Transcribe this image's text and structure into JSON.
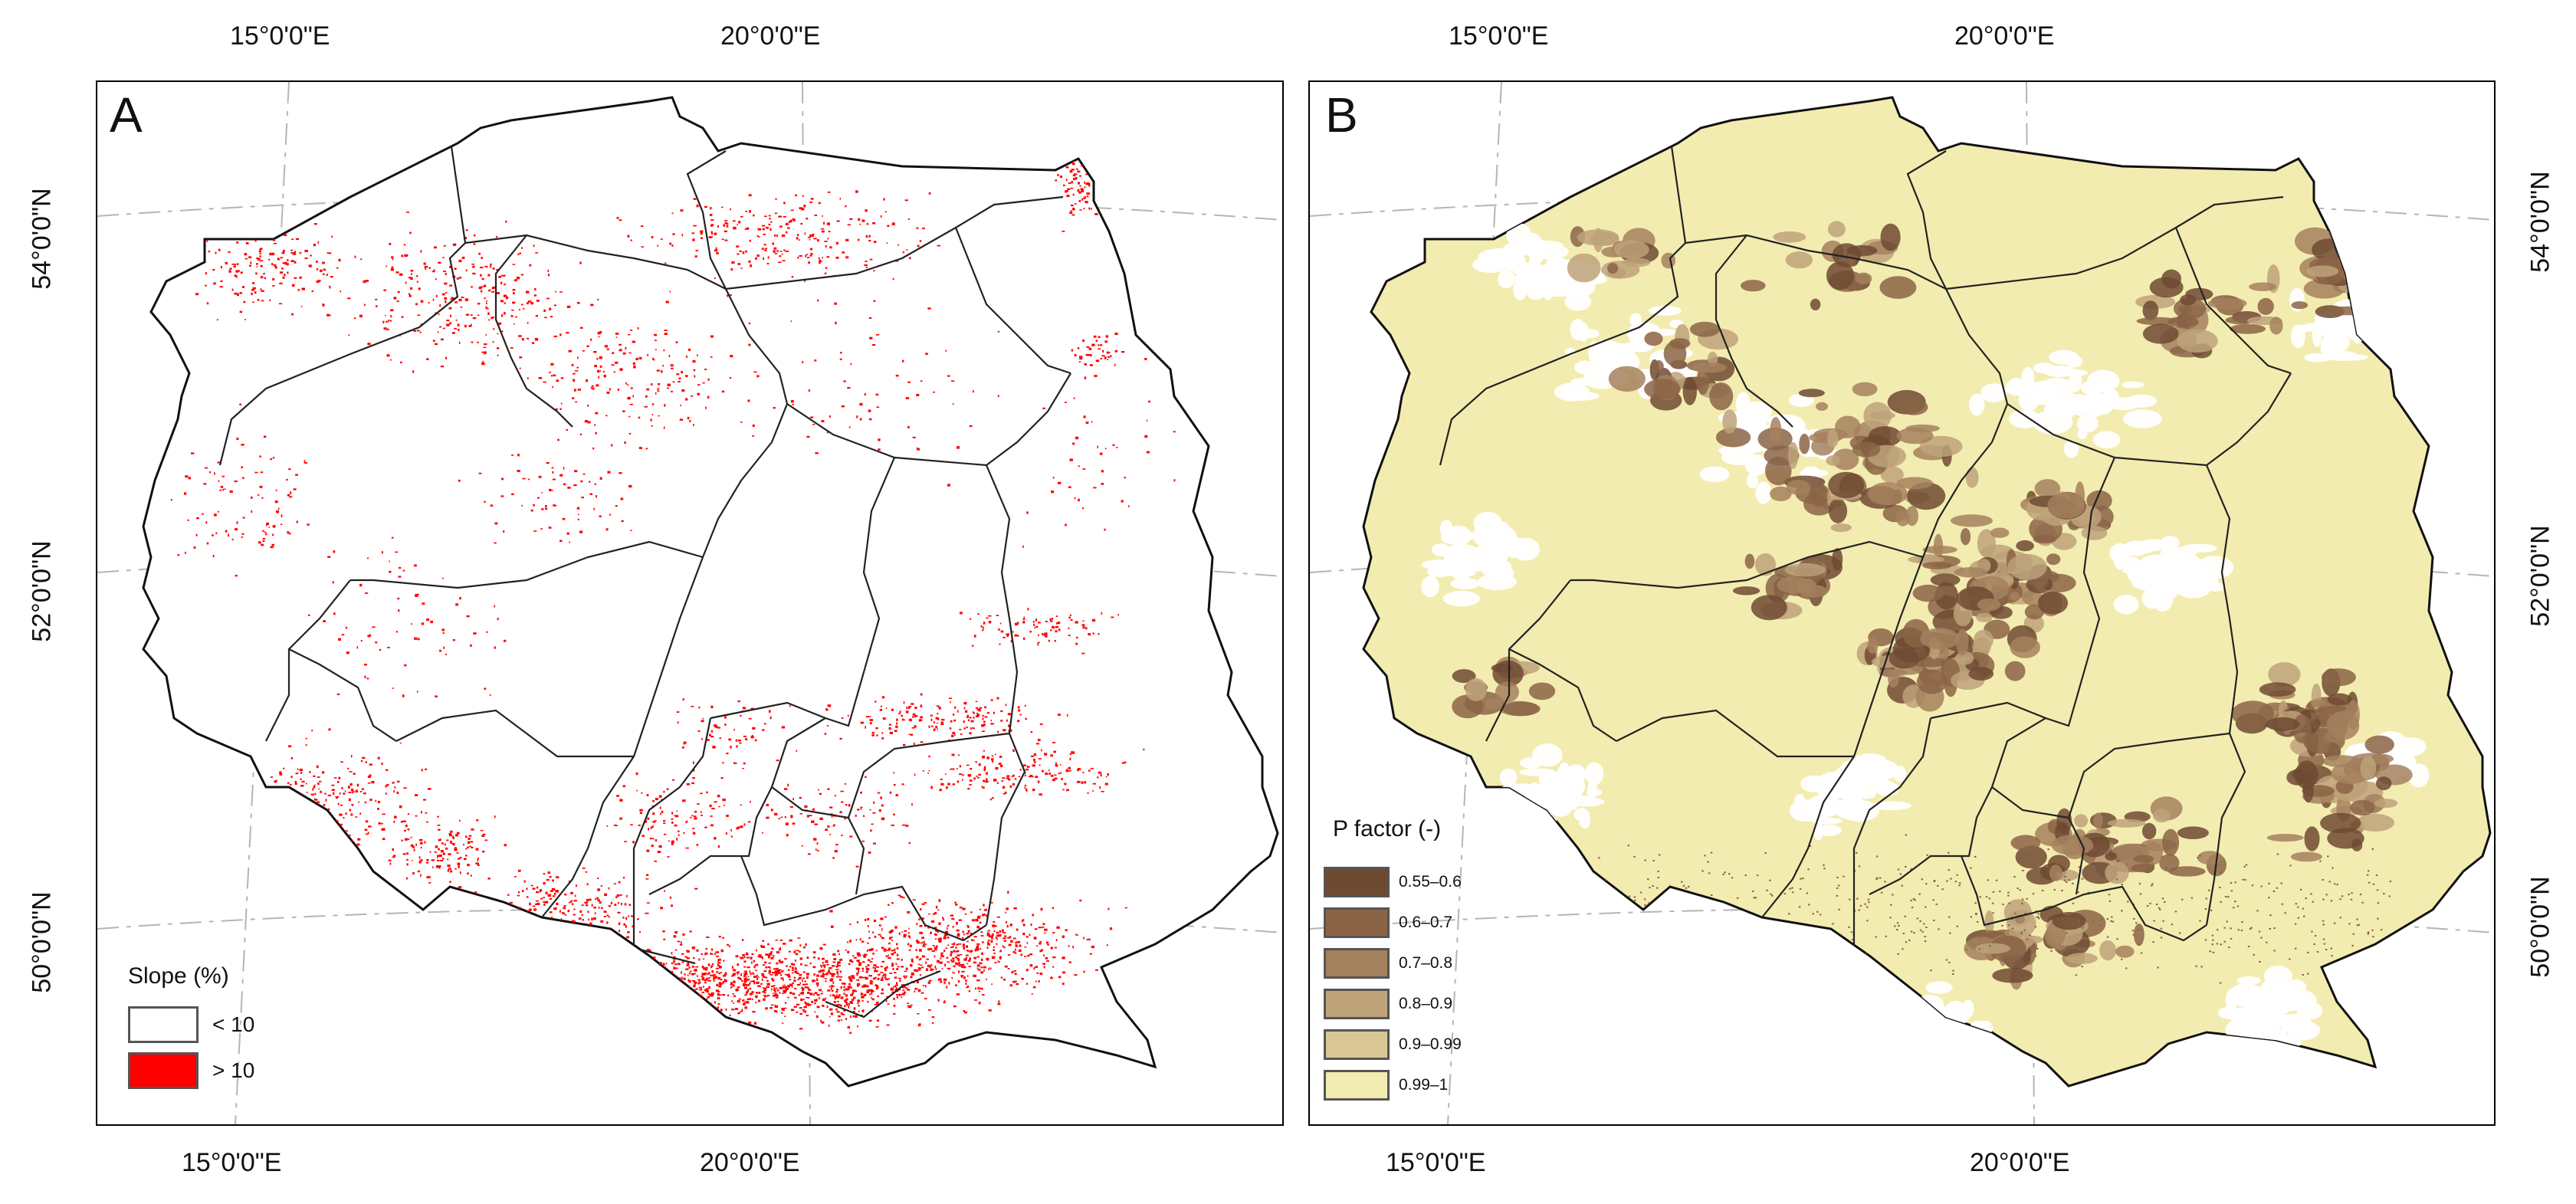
{
  "panels": [
    {
      "id": "A",
      "letter": "A",
      "top_labels": [
        "15°0'0\"E",
        "20°0'0\"E"
      ],
      "bottom_labels": [
        "15°0'0\"E",
        "20°0'0\"E"
      ],
      "left_labels": [
        "54°0'0\"N",
        "52°0'0\"N",
        "50°0'0\"N"
      ],
      "legend": {
        "title": "Slope (%)",
        "items": [
          {
            "label": "< 10",
            "color": "#ffffff"
          },
          {
            "label": "> 10",
            "color": "#ff0000"
          }
        ]
      }
    },
    {
      "id": "B",
      "letter": "B",
      "top_labels": [
        "15°0'0\"E",
        "20°0'0\"E"
      ],
      "bottom_labels": [
        "15°0'0\"E",
        "20°0'0\"E"
      ],
      "right_labels": [
        "54°0'0\"N",
        "52°0'0\"N",
        "50°0'0\"N"
      ],
      "legend": {
        "title": "P factor (-)",
        "items": [
          {
            "label": "0.55–0.6",
            "color": "#6e4a33"
          },
          {
            "label": "0.6–0.7",
            "color": "#8b6446"
          },
          {
            "label": "0.7–0.8",
            "color": "#a4815e"
          },
          {
            "label": "0.8–0.9",
            "color": "#bda27a"
          },
          {
            "label": "0.9–0.99",
            "color": "#d9c896"
          },
          {
            "label": "0.99–1",
            "color": "#f3ecb0"
          }
        ]
      }
    }
  ],
  "colors": {
    "frame": "#000000",
    "graticule": "#b0b0b0",
    "boundary": "#222222",
    "slope_high": "#ff0000",
    "p_base": "#f3ecb0"
  }
}
